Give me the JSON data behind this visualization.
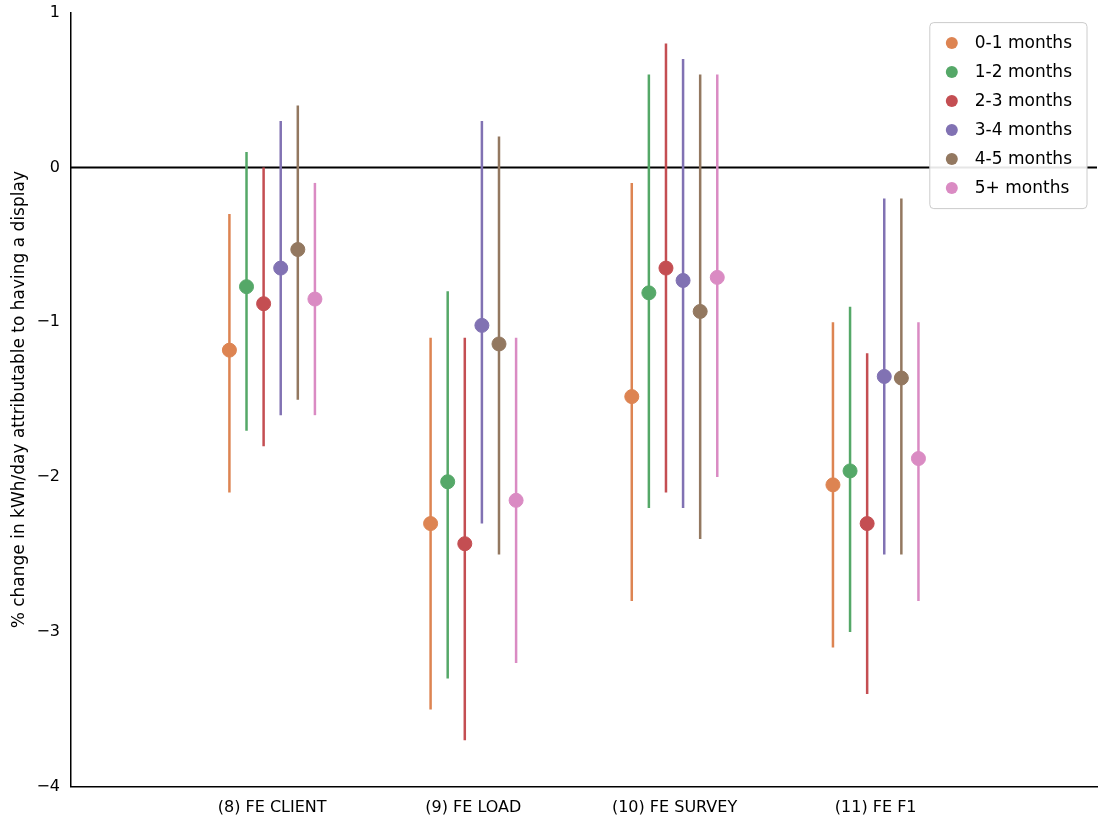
{
  "chart_data": {
    "type": "scatter",
    "ylabel": "% change in kWh/day attributable to having a display",
    "categories": [
      "(8) FE CLIENT",
      "(9) FE LOAD",
      "(10) FE SURVEY",
      "(11) FE F1"
    ],
    "ylim": [
      -4,
      1
    ],
    "yticks": [
      {
        "value": -4,
        "label": "−4"
      },
      {
        "value": -3,
        "label": "−3"
      },
      {
        "value": -2,
        "label": "−2"
      },
      {
        "value": -1,
        "label": "−1"
      },
      0,
      1
    ],
    "grid": false,
    "legend": "top right",
    "marker": "circle",
    "ref_lines": [
      {
        "axis": "y",
        "value": 0,
        "color": "#000000"
      }
    ],
    "series": [
      {
        "name": "0-1 months",
        "color": "#dd8452",
        "values": [
          -1.18,
          -2.3,
          -1.48,
          -2.05
        ],
        "errors": [
          [
            -2.1,
            -0.3
          ],
          [
            -3.5,
            -1.1
          ],
          [
            -2.8,
            -0.1
          ],
          [
            -3.1,
            -1.0
          ]
        ]
      },
      {
        "name": "1-2 months",
        "color": "#55a868",
        "values": [
          -0.77,
          -2.03,
          -0.81,
          -1.96
        ],
        "errors": [
          [
            -1.7,
            0.1
          ],
          [
            -3.3,
            -0.8
          ],
          [
            -2.2,
            0.6
          ],
          [
            -3.0,
            -0.9
          ]
        ]
      },
      {
        "name": "2-3 months",
        "color": "#c44e52",
        "values": [
          -0.88,
          -2.43,
          -0.65,
          -2.3
        ],
        "errors": [
          [
            -1.8,
            0.0
          ],
          [
            -3.7,
            -1.1
          ],
          [
            -2.1,
            0.8
          ],
          [
            -3.4,
            -1.2
          ]
        ]
      },
      {
        "name": "3-4 months",
        "color": "#8172b3",
        "values": [
          -0.65,
          -1.02,
          -0.73,
          -1.35
        ],
        "errors": [
          [
            -1.6,
            0.3
          ],
          [
            -2.3,
            0.3
          ],
          [
            -2.2,
            0.7
          ],
          [
            -2.5,
            -0.2
          ]
        ]
      },
      {
        "name": "4-5 months",
        "color": "#937860",
        "values": [
          -0.53,
          -1.14,
          -0.93,
          -1.36
        ],
        "errors": [
          [
            -1.5,
            0.4
          ],
          [
            -2.5,
            0.2
          ],
          [
            -2.4,
            0.6
          ],
          [
            -2.5,
            -0.2
          ]
        ]
      },
      {
        "name": "5+ months",
        "color": "#da8bc3",
        "values": [
          -0.85,
          -2.15,
          -0.71,
          -1.88
        ],
        "errors": [
          [
            -1.6,
            -0.1
          ],
          [
            -3.2,
            -1.1
          ],
          [
            -2.0,
            0.6
          ],
          [
            -2.8,
            -1.0
          ]
        ]
      }
    ]
  }
}
